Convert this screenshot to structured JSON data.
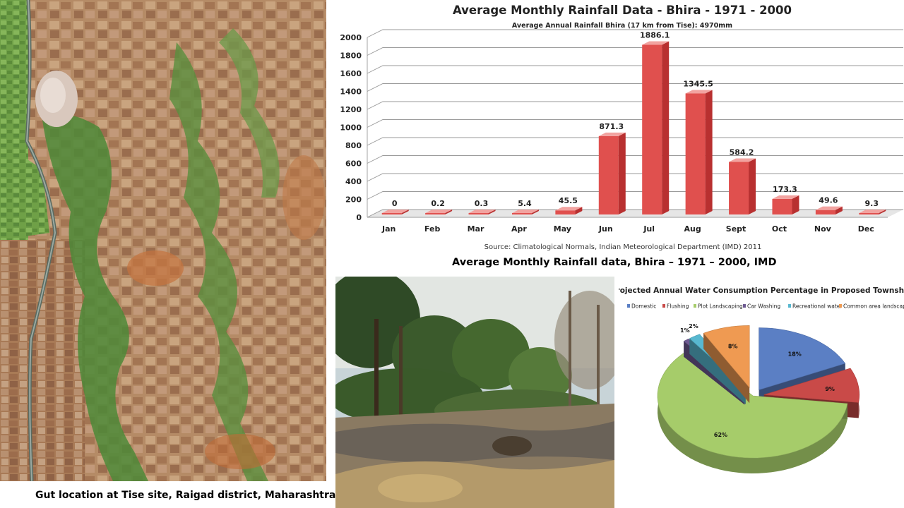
{
  "aerial_caption": "Gut location at Tise site, Raigad district, Maharashtra",
  "photo_caption": "Average Monthly Rainfall data, Bhira – 1971 – 2000, IMD",
  "colors": {
    "bar_front": "#e0504e",
    "bar_top": "#f2a3a0",
    "bar_side": "#b83030",
    "floor": "#e6e6e6"
  },
  "chart_data": [
    {
      "type": "bar",
      "title": "Average Monthly Rainfall Data - Bhira - 1971 - 2000",
      "subtitle": "Average Annual Rainfall Bhira (17 km from Tise): 4970mm",
      "source": "Source: Climatological Normals, Indian Meteorological Department (IMD) 2011",
      "categories": [
        "Jan",
        "Feb",
        "Mar",
        "Apr",
        "May",
        "Jun",
        "Jul",
        "Aug",
        "Sept",
        "Oct",
        "Nov",
        "Dec"
      ],
      "values": [
        0,
        0.2,
        0.3,
        5.4,
        45.5,
        871.3,
        1886.1,
        1345.5,
        584.2,
        173.3,
        49.6,
        9.3
      ],
      "value_labels": [
        "0",
        "0.2",
        "0.3",
        "5.4",
        "45.5",
        "871.3",
        "1886.1",
        "1345.5",
        "584.2",
        "173.3",
        "49.6",
        "9.3"
      ],
      "y_ticks": [
        "0",
        "200",
        "400",
        "600",
        "800",
        "1000",
        "1200",
        "1400",
        "1600",
        "1800",
        "2000"
      ],
      "ylim": [
        0,
        2000
      ],
      "grid": true,
      "style": "3d"
    },
    {
      "type": "pie",
      "title": "Projected Annual Water Consumption Percentage in Proposed Township",
      "legend_position": "top",
      "slices": [
        {
          "name": "Domestic",
          "value": 18,
          "label": "18%",
          "color": "#5b7fc4"
        },
        {
          "name": "Flushing",
          "value": 9,
          "label": "9%",
          "color": "#c94a48"
        },
        {
          "name": "Plot Landscaping",
          "value": 62,
          "label": "62%",
          "color": "#a6cc6a"
        },
        {
          "name": "Car Washing",
          "value": 1,
          "label": "1%",
          "color": "#6e5a92"
        },
        {
          "name": "Recreational water",
          "value": 2,
          "label": "2%",
          "color": "#58b8d0"
        },
        {
          "name": "Common area landscaping",
          "value": 8,
          "label": "8%",
          "color": "#ef9a52"
        }
      ]
    }
  ]
}
